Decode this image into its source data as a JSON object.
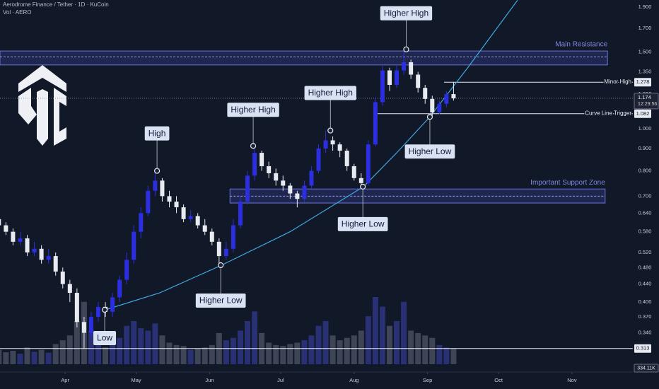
{
  "chart_data": {
    "type": "candlestick",
    "title": "Aerodrome Finance / Tether · 1D · KuCoin",
    "volume_title": "Vol · AERO",
    "x": [
      -28,
      -25,
      -22,
      -19,
      -16,
      -13,
      -10,
      -7,
      -4,
      -1,
      2,
      5,
      8,
      11,
      14,
      17,
      20,
      23,
      26,
      29,
      32,
      35,
      38,
      41,
      44,
      47,
      50,
      53,
      56,
      59,
      62,
      65,
      68,
      71,
      74,
      77,
      80,
      83,
      86,
      89,
      92,
      95,
      98,
      101,
      104,
      107,
      110,
      113,
      116,
      119,
      122,
      125,
      128,
      131,
      134,
      137,
      140,
      143,
      146,
      149,
      152,
      155,
      158,
      161,
      164
    ],
    "open": [
      0.62,
      0.6,
      0.58,
      0.55,
      0.56,
      0.52,
      0.53,
      0.5,
      0.51,
      0.47,
      0.44,
      0.42,
      0.36,
      0.34,
      0.37,
      0.39,
      0.38,
      0.41,
      0.45,
      0.5,
      0.58,
      0.64,
      0.72,
      0.76,
      0.7,
      0.68,
      0.66,
      0.62,
      0.63,
      0.6,
      0.58,
      0.55,
      0.51,
      0.53,
      0.6,
      0.68,
      0.78,
      0.88,
      0.82,
      0.79,
      0.76,
      0.74,
      0.71,
      0.69,
      0.74,
      0.8,
      0.9,
      0.94,
      0.92,
      0.89,
      0.82,
      0.77,
      0.75,
      0.92,
      1.15,
      1.36,
      1.26,
      1.36,
      1.42,
      1.33,
      1.24,
      1.17,
      1.09,
      1.14,
      1.2
    ],
    "high": [
      0.64,
      0.61,
      0.59,
      0.58,
      0.57,
      0.55,
      0.54,
      0.53,
      0.52,
      0.48,
      0.45,
      0.43,
      0.37,
      0.38,
      0.4,
      0.4,
      0.42,
      0.46,
      0.52,
      0.6,
      0.66,
      0.74,
      0.8,
      0.77,
      0.72,
      0.7,
      0.67,
      0.65,
      0.64,
      0.62,
      0.59,
      0.56,
      0.55,
      0.62,
      0.7,
      0.8,
      0.913,
      0.89,
      0.84,
      0.81,
      0.78,
      0.75,
      0.72,
      0.76,
      0.82,
      0.92,
      0.99,
      0.96,
      0.93,
      0.9,
      0.83,
      0.79,
      0.94,
      1.18,
      1.4,
      1.38,
      1.4,
      1.52,
      1.44,
      1.35,
      1.26,
      1.19,
      1.16,
      1.22,
      1.278
    ],
    "low": [
      0.59,
      0.57,
      0.54,
      0.54,
      0.51,
      0.51,
      0.49,
      0.49,
      0.46,
      0.43,
      0.4,
      0.35,
      0.313,
      0.33,
      0.36,
      0.37,
      0.37,
      0.4,
      0.44,
      0.49,
      0.56,
      0.63,
      0.7,
      0.68,
      0.66,
      0.64,
      0.61,
      0.61,
      0.59,
      0.57,
      0.54,
      0.486,
      0.5,
      0.52,
      0.59,
      0.67,
      0.76,
      0.8,
      0.77,
      0.74,
      0.72,
      0.69,
      0.66,
      0.68,
      0.73,
      0.79,
      0.88,
      0.89,
      0.86,
      0.8,
      0.76,
      0.736,
      0.74,
      0.91,
      1.13,
      1.22,
      1.24,
      1.33,
      1.3,
      1.21,
      1.14,
      1.064,
      1.08,
      1.12,
      1.16
    ],
    "close": [
      0.6,
      0.58,
      0.55,
      0.56,
      0.52,
      0.53,
      0.5,
      0.51,
      0.47,
      0.44,
      0.42,
      0.36,
      0.34,
      0.37,
      0.39,
      0.38,
      0.41,
      0.45,
      0.5,
      0.58,
      0.64,
      0.72,
      0.76,
      0.7,
      0.68,
      0.66,
      0.62,
      0.63,
      0.6,
      0.58,
      0.55,
      0.51,
      0.53,
      0.6,
      0.68,
      0.78,
      0.88,
      0.82,
      0.79,
      0.76,
      0.74,
      0.71,
      0.69,
      0.74,
      0.8,
      0.9,
      0.94,
      0.92,
      0.89,
      0.82,
      0.77,
      0.75,
      0.92,
      1.15,
      1.36,
      1.26,
      1.36,
      1.42,
      1.33,
      1.24,
      1.17,
      1.09,
      1.14,
      1.2,
      1.174
    ],
    "volume": [
      300,
      250,
      280,
      220,
      350,
      260,
      300,
      240,
      420,
      500,
      600,
      900,
      1300,
      700,
      500,
      350,
      420,
      550,
      800,
      900,
      750,
      700,
      850,
      600,
      450,
      400,
      380,
      300,
      320,
      350,
      400,
      650,
      500,
      550,
      700,
      900,
      1100,
      650,
      450,
      400,
      380,
      420,
      450,
      500,
      600,
      800,
      900,
      600,
      500,
      550,
      600,
      700,
      1000,
      1400,
      1200,
      800,
      900,
      1300,
      700,
      650,
      600,
      550,
      400,
      350,
      334.11
    ],
    "volume_tag": "334.11K",
    "up_color": "#2b2fe0",
    "down_color": "#e8eaf2",
    "log_scale": true,
    "xlim": [
      -27.5,
      239.7
    ],
    "xticks": [
      {
        "value": 0,
        "label": "Apr"
      },
      {
        "value": 30,
        "label": "May"
      },
      {
        "value": 61,
        "label": "Jun"
      },
      {
        "value": 91,
        "label": "Jul"
      },
      {
        "value": 122,
        "label": "Aug"
      },
      {
        "value": 153,
        "label": "Sep"
      },
      {
        "value": 183,
        "label": "Oct"
      },
      {
        "value": 214,
        "label": "Nov"
      }
    ],
    "ylim": [
      0.288,
      1.973
    ],
    "yticks": [
      {
        "value": 1.9,
        "label": "1.900"
      },
      {
        "value": 1.7,
        "label": "1.700"
      },
      {
        "value": 1.5,
        "label": "1.500"
      },
      {
        "value": 1.35,
        "label": "1.350"
      },
      {
        "value": 1.2,
        "label": "1.200"
      },
      {
        "value": 1.0,
        "label": "1.000"
      },
      {
        "value": 0.9,
        "label": "0.900"
      },
      {
        "value": 0.8,
        "label": "0.800"
      },
      {
        "value": 0.7,
        "label": "0.700"
      },
      {
        "value": 0.64,
        "label": "0.640"
      },
      {
        "value": 0.58,
        "label": "0.580"
      },
      {
        "value": 0.52,
        "label": "0.520"
      },
      {
        "value": 0.48,
        "label": "0.480"
      },
      {
        "value": 0.44,
        "label": "0.440"
      },
      {
        "value": 0.4,
        "label": "0.400"
      },
      {
        "value": 0.37,
        "label": "0.370"
      },
      {
        "value": 0.34,
        "label": "0.340"
      }
    ],
    "last_price": 1.174,
    "countdown": "12:29:56",
    "price_lines": [
      {
        "label": "Minor High",
        "value": 1.278,
        "from": 160
      },
      {
        "label": "Curve Line Trigger",
        "value": 1.082,
        "from": 131
      },
      {
        "value": 0.313,
        "from": -27.5
      }
    ],
    "zones": [
      {
        "label": "Main Resistance",
        "top": 1.507,
        "mid": 1.46,
        "bottom": 1.4,
        "from": -27.5,
        "to": 229
      },
      {
        "label": "Important Support Zone",
        "top": 0.727,
        "mid": 0.7,
        "bottom": 0.675,
        "from": 69.6,
        "to": 228
      }
    ],
    "curve": {
      "x": [
        17,
        40,
        66,
        95,
        126,
        140,
        154,
        170,
        191
      ],
      "y": [
        0.384,
        0.42,
        0.486,
        0.58,
        0.736,
        0.88,
        1.064,
        1.38,
        1.97
      ]
    },
    "annotations": [
      {
        "text": "High",
        "x": 38.8,
        "y": 0.8
      },
      {
        "text": "Higher High",
        "x": 79.4,
        "y": 0.913
      },
      {
        "text": "Higher High",
        "x": 112,
        "y": 0.99
      },
      {
        "text": "Higher High",
        "x": 144,
        "y": 1.52
      },
      {
        "text": "Low",
        "x": 16.7,
        "y": 0.384
      },
      {
        "text": "Higher Low",
        "x": 65.7,
        "y": 0.486
      },
      {
        "text": "Higher Low",
        "x": 125.7,
        "y": 0.736
      },
      {
        "text": "Higher Low",
        "x": 154,
        "y": 1.064
      }
    ]
  }
}
